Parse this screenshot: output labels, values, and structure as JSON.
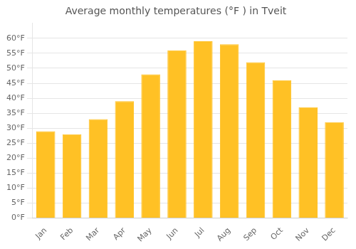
{
  "chart_data": {
    "type": "bar",
    "title": "Average monthly temperatures (°F ) in Tveit",
    "categories": [
      "Jan",
      "Feb",
      "Mar",
      "Apr",
      "May",
      "Jun",
      "Jul",
      "Aug",
      "Sep",
      "Oct",
      "Nov",
      "Dec"
    ],
    "values": [
      29,
      28,
      33,
      39,
      48,
      56,
      59,
      58,
      52,
      46,
      37,
      32
    ],
    "color": "#FFC125",
    "ylim": [
      0,
      65
    ],
    "yticks": [
      {
        "value": 0,
        "label": "0°F"
      },
      {
        "value": 5,
        "label": "5°F"
      },
      {
        "value": 10,
        "label": "10°F"
      },
      {
        "value": 15,
        "label": "15°F"
      },
      {
        "value": 20,
        "label": "20°F"
      },
      {
        "value": 25,
        "label": "25°F"
      },
      {
        "value": 30,
        "label": "30°F"
      },
      {
        "value": 35,
        "label": "35°F"
      },
      {
        "value": 40,
        "label": "40°F"
      },
      {
        "value": 45,
        "label": "45°F"
      },
      {
        "value": 50,
        "label": "50°F"
      },
      {
        "value": 55,
        "label": "55°F"
      },
      {
        "value": 60,
        "label": "60°F"
      }
    ],
    "grid": true
  }
}
